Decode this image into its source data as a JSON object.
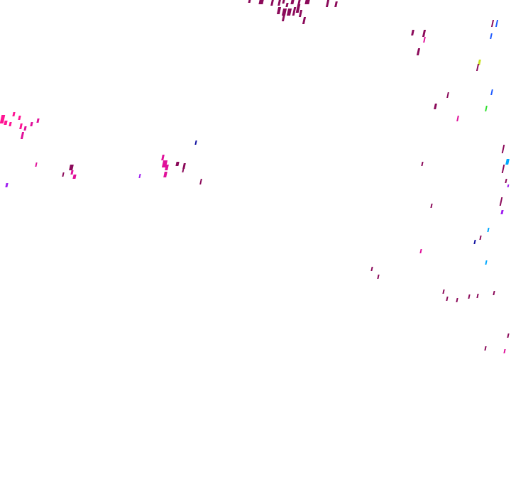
{
  "colors": {
    "background": "#ffffff",
    "maroon": "#8b0a5a",
    "magenta": "#e0109a",
    "pink": "#ff1493",
    "violet": "#a020f0",
    "blue": "#1e5aff",
    "navy": "#1010a0",
    "cyan": "#00a8ff",
    "green": "#30e030",
    "yellow": "#c8e020"
  }
}
